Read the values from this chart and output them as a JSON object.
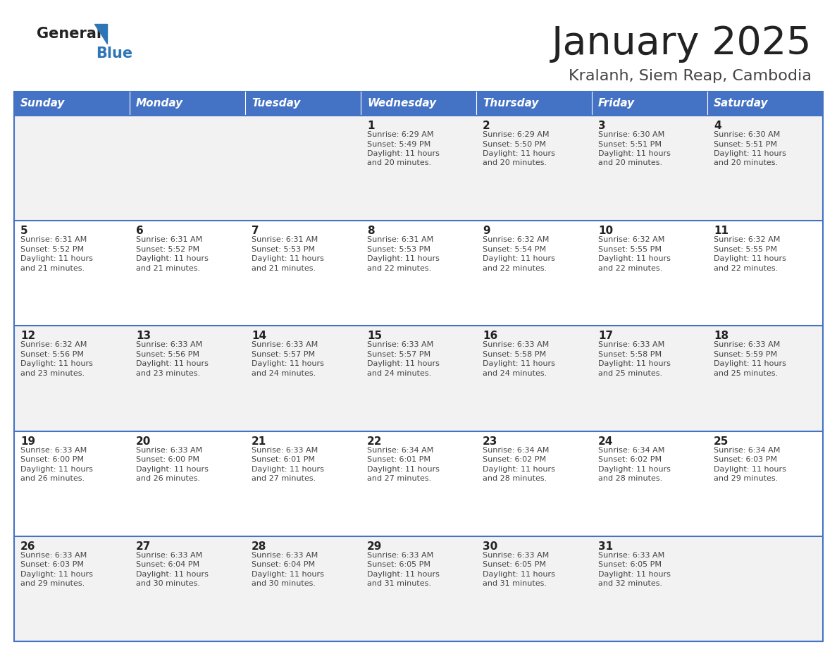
{
  "title": "January 2025",
  "subtitle": "Kralanh, Siem Reap, Cambodia",
  "days_of_week": [
    "Sunday",
    "Monday",
    "Tuesday",
    "Wednesday",
    "Thursday",
    "Friday",
    "Saturday"
  ],
  "header_bg": "#4472C4",
  "header_text_color": "#FFFFFF",
  "row_bg_light": "#F2F2F2",
  "row_bg_white": "#FFFFFF",
  "cell_border_color": "#4472C4",
  "title_color": "#222222",
  "subtitle_color": "#444444",
  "day_num_color": "#222222",
  "content_color": "#444444",
  "logo_general_color": "#222222",
  "logo_blue_color": "#2E75B6",
  "calendar": [
    [
      {
        "day": "",
        "sunrise": "",
        "sunset": "",
        "daylight": ""
      },
      {
        "day": "",
        "sunrise": "",
        "sunset": "",
        "daylight": ""
      },
      {
        "day": "",
        "sunrise": "",
        "sunset": "",
        "daylight": ""
      },
      {
        "day": "1",
        "sunrise": "6:29 AM",
        "sunset": "5:49 PM",
        "daylight": "11 hours and 20 minutes."
      },
      {
        "day": "2",
        "sunrise": "6:29 AM",
        "sunset": "5:50 PM",
        "daylight": "11 hours and 20 minutes."
      },
      {
        "day": "3",
        "sunrise": "6:30 AM",
        "sunset": "5:51 PM",
        "daylight": "11 hours and 20 minutes."
      },
      {
        "day": "4",
        "sunrise": "6:30 AM",
        "sunset": "5:51 PM",
        "daylight": "11 hours and 20 minutes."
      }
    ],
    [
      {
        "day": "5",
        "sunrise": "6:31 AM",
        "sunset": "5:52 PM",
        "daylight": "11 hours and 21 minutes."
      },
      {
        "day": "6",
        "sunrise": "6:31 AM",
        "sunset": "5:52 PM",
        "daylight": "11 hours and 21 minutes."
      },
      {
        "day": "7",
        "sunrise": "6:31 AM",
        "sunset": "5:53 PM",
        "daylight": "11 hours and 21 minutes."
      },
      {
        "day": "8",
        "sunrise": "6:31 AM",
        "sunset": "5:53 PM",
        "daylight": "11 hours and 22 minutes."
      },
      {
        "day": "9",
        "sunrise": "6:32 AM",
        "sunset": "5:54 PM",
        "daylight": "11 hours and 22 minutes."
      },
      {
        "day": "10",
        "sunrise": "6:32 AM",
        "sunset": "5:55 PM",
        "daylight": "11 hours and 22 minutes."
      },
      {
        "day": "11",
        "sunrise": "6:32 AM",
        "sunset": "5:55 PM",
        "daylight": "11 hours and 22 minutes."
      }
    ],
    [
      {
        "day": "12",
        "sunrise": "6:32 AM",
        "sunset": "5:56 PM",
        "daylight": "11 hours and 23 minutes."
      },
      {
        "day": "13",
        "sunrise": "6:33 AM",
        "sunset": "5:56 PM",
        "daylight": "11 hours and 23 minutes."
      },
      {
        "day": "14",
        "sunrise": "6:33 AM",
        "sunset": "5:57 PM",
        "daylight": "11 hours and 24 minutes."
      },
      {
        "day": "15",
        "sunrise": "6:33 AM",
        "sunset": "5:57 PM",
        "daylight": "11 hours and 24 minutes."
      },
      {
        "day": "16",
        "sunrise": "6:33 AM",
        "sunset": "5:58 PM",
        "daylight": "11 hours and 24 minutes."
      },
      {
        "day": "17",
        "sunrise": "6:33 AM",
        "sunset": "5:58 PM",
        "daylight": "11 hours and 25 minutes."
      },
      {
        "day": "18",
        "sunrise": "6:33 AM",
        "sunset": "5:59 PM",
        "daylight": "11 hours and 25 minutes."
      }
    ],
    [
      {
        "day": "19",
        "sunrise": "6:33 AM",
        "sunset": "6:00 PM",
        "daylight": "11 hours and 26 minutes."
      },
      {
        "day": "20",
        "sunrise": "6:33 AM",
        "sunset": "6:00 PM",
        "daylight": "11 hours and 26 minutes."
      },
      {
        "day": "21",
        "sunrise": "6:33 AM",
        "sunset": "6:01 PM",
        "daylight": "11 hours and 27 minutes."
      },
      {
        "day": "22",
        "sunrise": "6:34 AM",
        "sunset": "6:01 PM",
        "daylight": "11 hours and 27 minutes."
      },
      {
        "day": "23",
        "sunrise": "6:34 AM",
        "sunset": "6:02 PM",
        "daylight": "11 hours and 28 minutes."
      },
      {
        "day": "24",
        "sunrise": "6:34 AM",
        "sunset": "6:02 PM",
        "daylight": "11 hours and 28 minutes."
      },
      {
        "day": "25",
        "sunrise": "6:34 AM",
        "sunset": "6:03 PM",
        "daylight": "11 hours and 29 minutes."
      }
    ],
    [
      {
        "day": "26",
        "sunrise": "6:33 AM",
        "sunset": "6:03 PM",
        "daylight": "11 hours and 29 minutes."
      },
      {
        "day": "27",
        "sunrise": "6:33 AM",
        "sunset": "6:04 PM",
        "daylight": "11 hours and 30 minutes."
      },
      {
        "day": "28",
        "sunrise": "6:33 AM",
        "sunset": "6:04 PM",
        "daylight": "11 hours and 30 minutes."
      },
      {
        "day": "29",
        "sunrise": "6:33 AM",
        "sunset": "6:05 PM",
        "daylight": "11 hours and 31 minutes."
      },
      {
        "day": "30",
        "sunrise": "6:33 AM",
        "sunset": "6:05 PM",
        "daylight": "11 hours and 31 minutes."
      },
      {
        "day": "31",
        "sunrise": "6:33 AM",
        "sunset": "6:05 PM",
        "daylight": "11 hours and 32 minutes."
      },
      {
        "day": "",
        "sunrise": "",
        "sunset": "",
        "daylight": ""
      }
    ]
  ]
}
